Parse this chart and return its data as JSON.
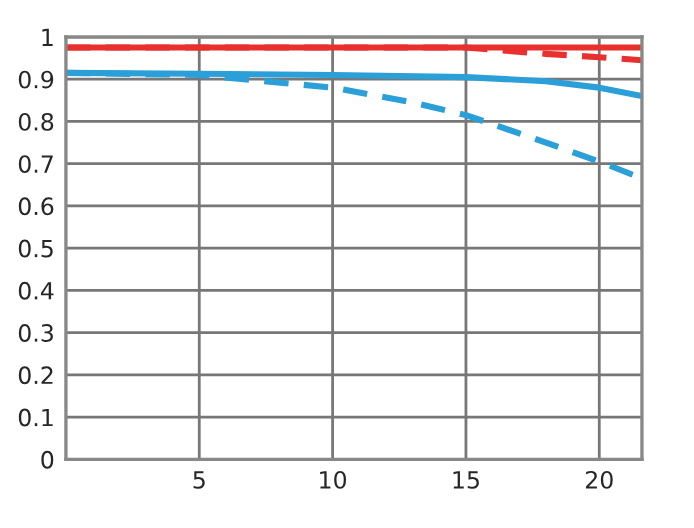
{
  "chart_data": {
    "type": "line",
    "xlim": [
      0,
      21.6
    ],
    "ylim": [
      0,
      1
    ],
    "xticks": [
      5,
      10,
      15,
      20
    ],
    "yticks": [
      0,
      0.1,
      0.2,
      0.3,
      0.4,
      0.5,
      0.6,
      0.7,
      0.8,
      0.9,
      1
    ],
    "grid": true,
    "marker": "none",
    "series": [
      {
        "color": "#e8312f",
        "line_style": "solid",
        "x": [
          0,
          5,
          10,
          15,
          20,
          21.6
        ],
        "values": [
          0.975,
          0.975,
          0.975,
          0.975,
          0.975,
          0.975
        ]
      },
      {
        "color": "#e8312f",
        "line_style": "dashed",
        "x": [
          0,
          5,
          10,
          15,
          16,
          18,
          20,
          21.6
        ],
        "values": [
          0.975,
          0.975,
          0.975,
          0.975,
          0.97,
          0.96,
          0.952,
          0.945
        ]
      },
      {
        "color": "#2a9fd8",
        "line_style": "solid",
        "x": [
          0,
          5,
          10,
          15,
          18,
          20,
          21.6
        ],
        "values": [
          0.915,
          0.913,
          0.91,
          0.905,
          0.895,
          0.88,
          0.86
        ]
      },
      {
        "color": "#2a9fd8",
        "line_style": "dashed",
        "x": [
          0,
          5,
          10,
          13,
          15,
          18,
          20,
          21.6
        ],
        "values": [
          0.915,
          0.91,
          0.88,
          0.845,
          0.815,
          0.75,
          0.705,
          0.665
        ]
      }
    ]
  }
}
